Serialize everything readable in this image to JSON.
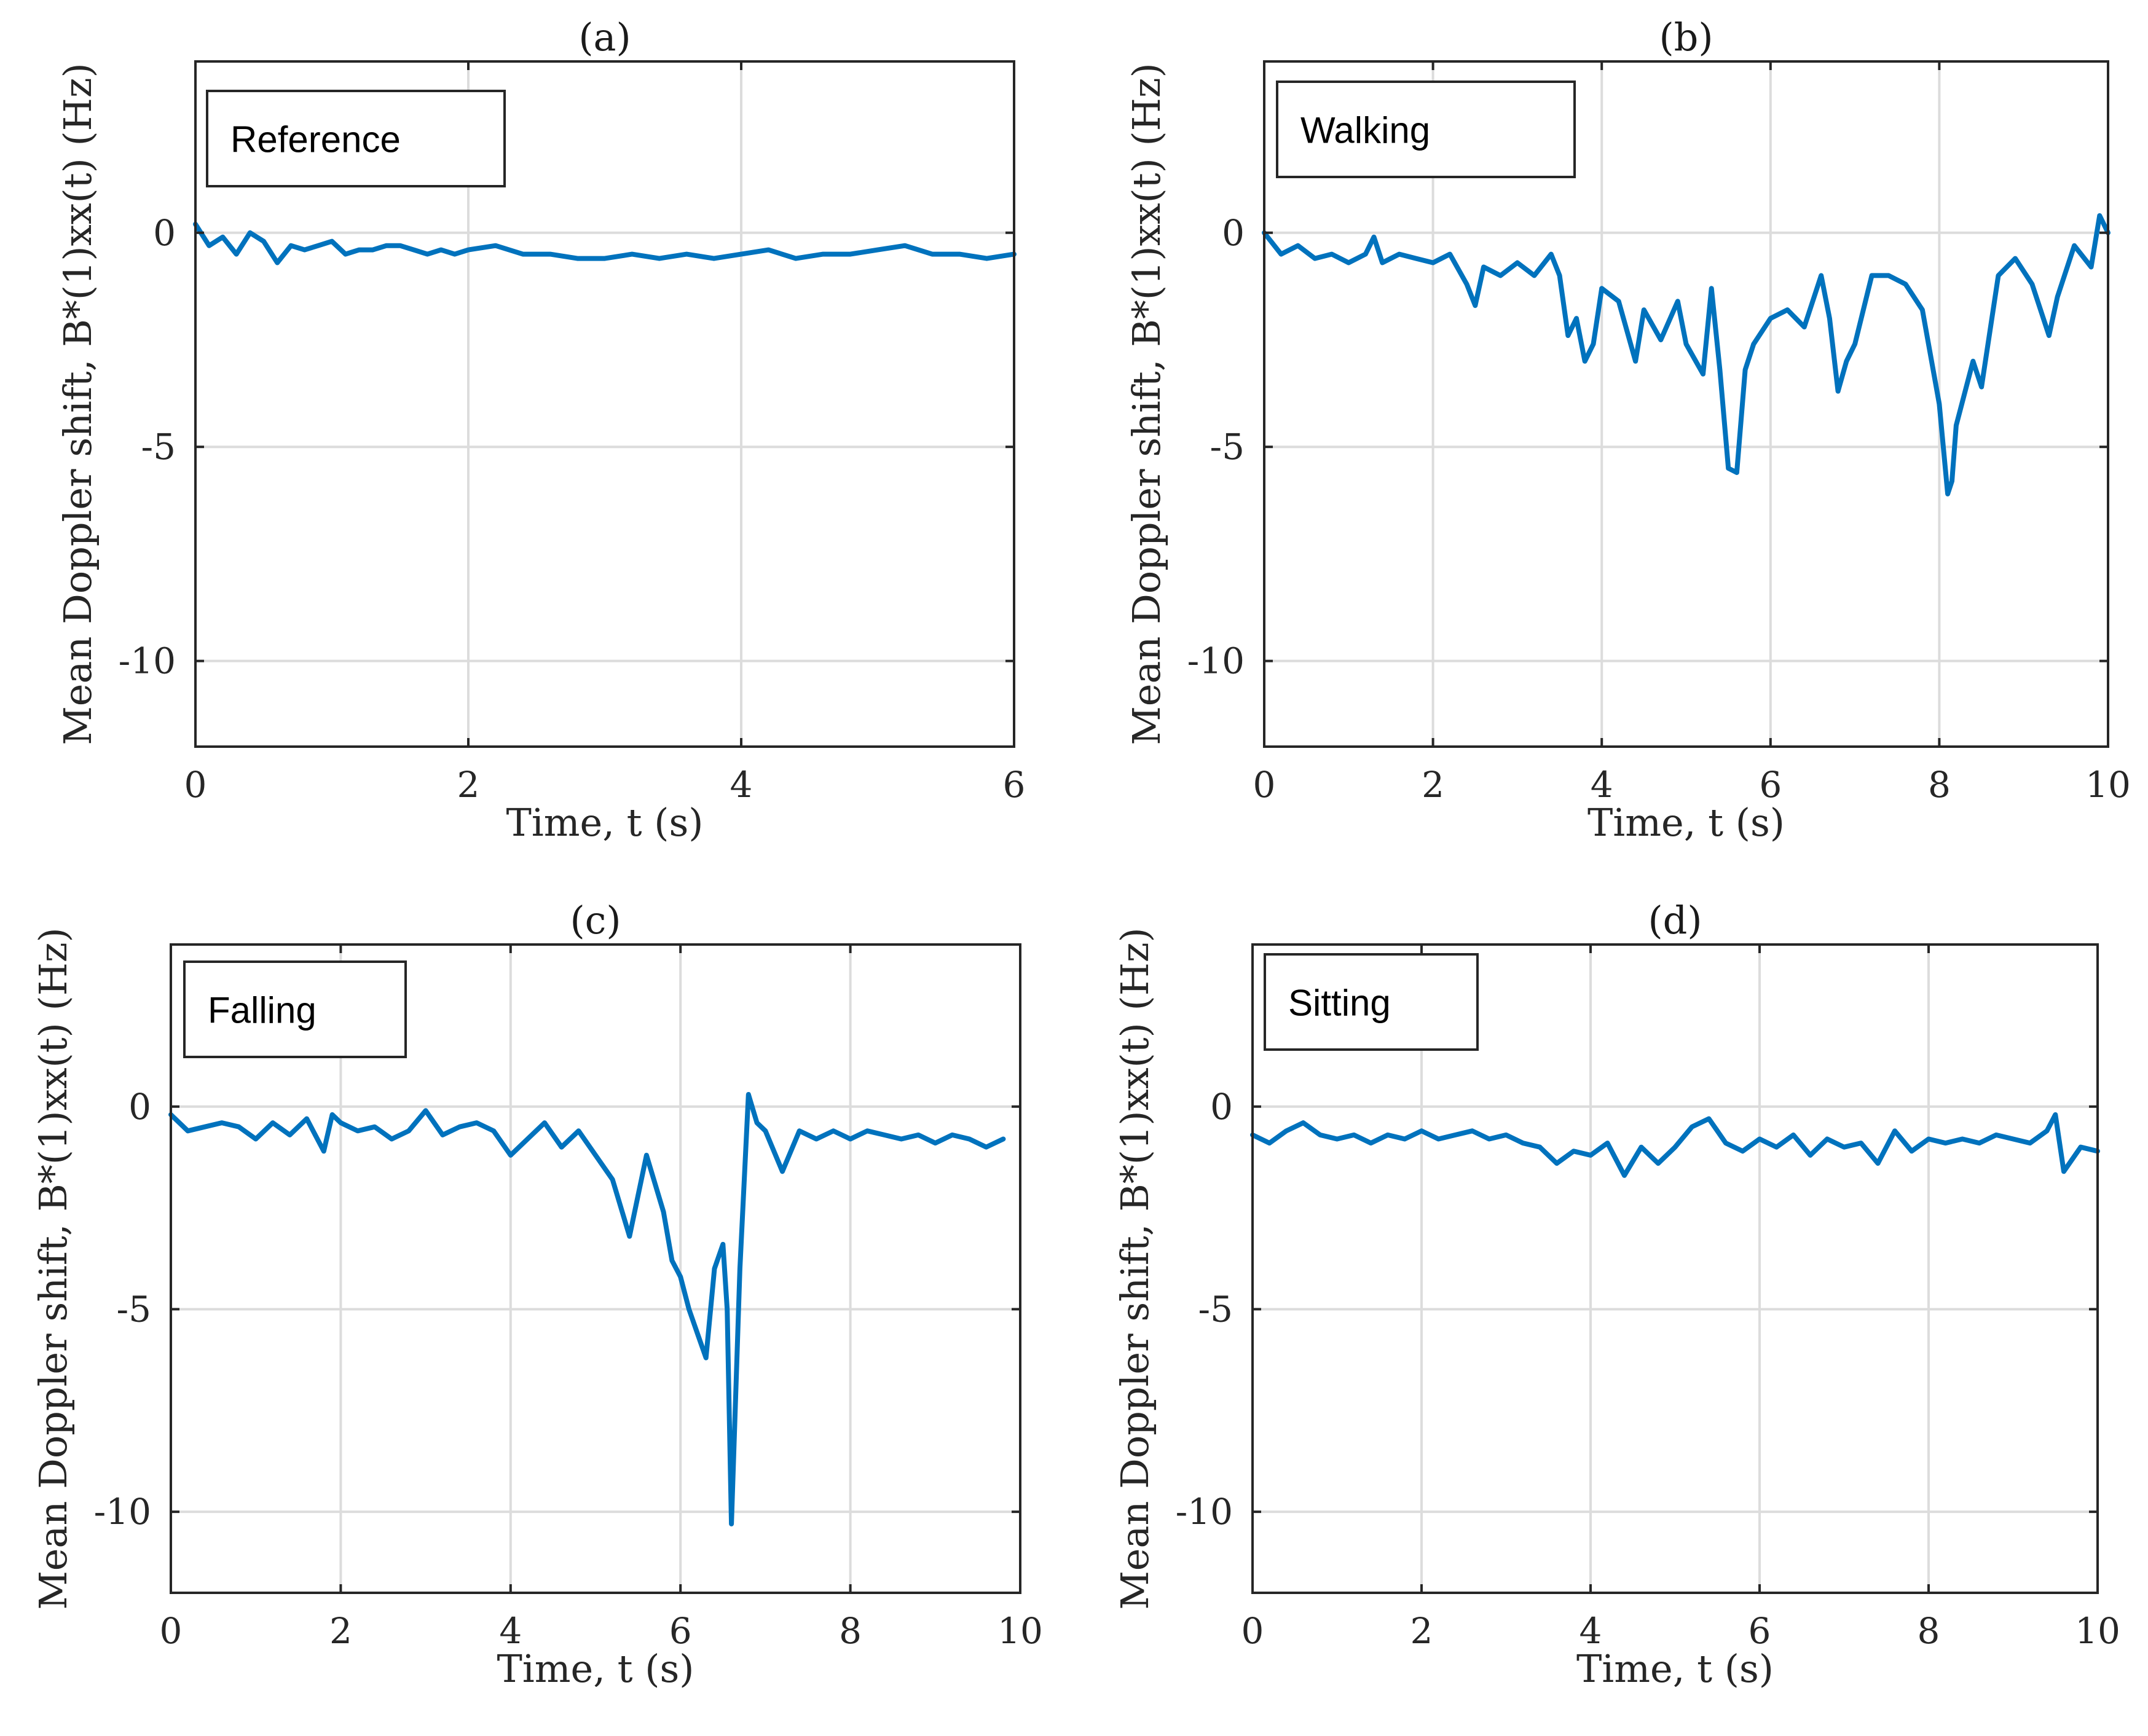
{
  "colors": {
    "line": "#0072BD",
    "axes": "#262626",
    "grid": "#dcdcdc"
  },
  "chart_data": [
    {
      "type": "line",
      "title": "(a)",
      "legend": "Reference",
      "xlabel": "Time, t (s)",
      "ylabel": "Mean Doppler shift, B*(1)xx(t) (Hz)",
      "xlim": [
        0,
        6
      ],
      "ylim": [
        -12,
        4
      ],
      "xticks": [
        0,
        2,
        4,
        6
      ],
      "yticks": [
        0,
        -5,
        -10
      ],
      "grid": true,
      "series": [
        {
          "name": "Reference",
          "x": [
            0,
            0.1,
            0.2,
            0.3,
            0.4,
            0.5,
            0.6,
            0.7,
            0.8,
            0.9,
            1.0,
            1.1,
            1.2,
            1.3,
            1.4,
            1.5,
            1.6,
            1.7,
            1.8,
            1.9,
            2.0,
            2.2,
            2.4,
            2.6,
            2.8,
            3.0,
            3.2,
            3.4,
            3.6,
            3.8,
            4.0,
            4.2,
            4.4,
            4.6,
            4.8,
            5.0,
            5.2,
            5.4,
            5.6,
            5.8,
            6.0
          ],
          "values": [
            0.2,
            -0.3,
            -0.1,
            -0.5,
            0.0,
            -0.2,
            -0.7,
            -0.3,
            -0.4,
            -0.3,
            -0.2,
            -0.5,
            -0.4,
            -0.4,
            -0.3,
            -0.3,
            -0.4,
            -0.5,
            -0.4,
            -0.5,
            -0.4,
            -0.3,
            -0.5,
            -0.5,
            -0.6,
            -0.6,
            -0.5,
            -0.6,
            -0.5,
            -0.6,
            -0.5,
            -0.4,
            -0.6,
            -0.5,
            -0.5,
            -0.4,
            -0.3,
            -0.5,
            -0.5,
            -0.6,
            -0.5
          ]
        }
      ]
    },
    {
      "type": "line",
      "title": "(b)",
      "legend": "Walking",
      "xlabel": "Time, t (s)",
      "ylabel": "Mean Doppler shift, B*(1)xx(t) (Hz)",
      "xlim": [
        0,
        10
      ],
      "ylim": [
        -12,
        4
      ],
      "xticks": [
        0,
        2,
        4,
        6,
        8,
        10
      ],
      "yticks": [
        0,
        -5,
        -10
      ],
      "grid": true,
      "series": [
        {
          "name": "Walking",
          "x": [
            0,
            0.2,
            0.4,
            0.6,
            0.8,
            1.0,
            1.2,
            1.3,
            1.4,
            1.6,
            1.8,
            2.0,
            2.2,
            2.4,
            2.5,
            2.6,
            2.8,
            3.0,
            3.2,
            3.4,
            3.5,
            3.6,
            3.7,
            3.8,
            3.9,
            4.0,
            4.2,
            4.4,
            4.5,
            4.7,
            4.9,
            5.0,
            5.2,
            5.3,
            5.4,
            5.5,
            5.6,
            5.7,
            5.8,
            6.0,
            6.2,
            6.4,
            6.6,
            6.7,
            6.8,
            6.9,
            7.0,
            7.2,
            7.4,
            7.6,
            7.8,
            8.0,
            8.1,
            8.15,
            8.2,
            8.4,
            8.5,
            8.7,
            8.9,
            9.1,
            9.3,
            9.4,
            9.6,
            9.8,
            9.9,
            10.0
          ],
          "values": [
            0.0,
            -0.5,
            -0.3,
            -0.6,
            -0.5,
            -0.7,
            -0.5,
            -0.1,
            -0.7,
            -0.5,
            -0.6,
            -0.7,
            -0.5,
            -1.2,
            -1.7,
            -0.8,
            -1.0,
            -0.7,
            -1.0,
            -0.5,
            -1.0,
            -2.4,
            -2.0,
            -3.0,
            -2.6,
            -1.3,
            -1.6,
            -3.0,
            -1.8,
            -2.5,
            -1.6,
            -2.6,
            -3.3,
            -1.3,
            -3.2,
            -5.5,
            -5.6,
            -3.2,
            -2.6,
            -2.0,
            -1.8,
            -2.2,
            -1.0,
            -2.0,
            -3.7,
            -3.0,
            -2.6,
            -1.0,
            -1.0,
            -1.2,
            -1.8,
            -4.0,
            -6.1,
            -5.8,
            -4.5,
            -3.0,
            -3.6,
            -1.0,
            -0.6,
            -1.2,
            -2.4,
            -1.5,
            -0.3,
            -0.8,
            0.4,
            0.0
          ]
        }
      ]
    },
    {
      "type": "line",
      "title": "(c)",
      "legend": "Falling",
      "xlabel": "Time, t (s)",
      "ylabel": "Mean Doppler shift, B*(1)xx(t) (Hz)",
      "xlim": [
        0,
        10
      ],
      "ylim": [
        -12,
        4
      ],
      "xticks": [
        0,
        2,
        4,
        6,
        8,
        10
      ],
      "yticks": [
        0,
        -5,
        -10
      ],
      "grid": true,
      "series": [
        {
          "name": "Falling",
          "x": [
            0,
            0.2,
            0.4,
            0.6,
            0.8,
            1.0,
            1.2,
            1.4,
            1.6,
            1.8,
            1.9,
            2.0,
            2.2,
            2.4,
            2.6,
            2.8,
            3.0,
            3.2,
            3.4,
            3.6,
            3.8,
            4.0,
            4.2,
            4.4,
            4.6,
            4.8,
            5.0,
            5.2,
            5.4,
            5.5,
            5.6,
            5.8,
            5.9,
            6.0,
            6.1,
            6.2,
            6.3,
            6.4,
            6.5,
            6.55,
            6.6,
            6.7,
            6.8,
            6.9,
            7.0,
            7.2,
            7.4,
            7.6,
            7.8,
            8.0,
            8.2,
            8.4,
            8.6,
            8.8,
            9.0,
            9.2,
            9.4,
            9.6,
            9.8
          ],
          "values": [
            -0.2,
            -0.6,
            -0.5,
            -0.4,
            -0.5,
            -0.8,
            -0.4,
            -0.7,
            -0.3,
            -1.1,
            -0.2,
            -0.4,
            -0.6,
            -0.5,
            -0.8,
            -0.6,
            -0.1,
            -0.7,
            -0.5,
            -0.4,
            -0.6,
            -1.2,
            -0.8,
            -0.4,
            -1.0,
            -0.6,
            -1.2,
            -1.8,
            -3.2,
            -2.2,
            -1.2,
            -2.6,
            -3.8,
            -4.2,
            -5.0,
            -5.6,
            -6.2,
            -4.0,
            -3.4,
            -5.0,
            -10.3,
            -4.0,
            0.3,
            -0.4,
            -0.6,
            -1.6,
            -0.6,
            -0.8,
            -0.6,
            -0.8,
            -0.6,
            -0.7,
            -0.8,
            -0.7,
            -0.9,
            -0.7,
            -0.8,
            -1.0,
            -0.8
          ]
        }
      ]
    },
    {
      "type": "line",
      "title": "(d)",
      "legend": "Sitting",
      "xlabel": "Time, t (s)",
      "ylabel": "Mean Doppler shift, B*(1)xx(t) (Hz)",
      "xlim": [
        0,
        10
      ],
      "ylim": [
        -12,
        4
      ],
      "xticks": [
        0,
        2,
        4,
        6,
        8,
        10
      ],
      "yticks": [
        0,
        -5,
        -10
      ],
      "grid": true,
      "series": [
        {
          "name": "Sitting",
          "x": [
            0,
            0.2,
            0.4,
            0.6,
            0.8,
            1.0,
            1.2,
            1.4,
            1.6,
            1.8,
            2.0,
            2.2,
            2.4,
            2.6,
            2.8,
            3.0,
            3.2,
            3.4,
            3.6,
            3.8,
            4.0,
            4.2,
            4.4,
            4.6,
            4.8,
            5.0,
            5.2,
            5.4,
            5.6,
            5.8,
            6.0,
            6.2,
            6.4,
            6.6,
            6.8,
            7.0,
            7.2,
            7.4,
            7.6,
            7.8,
            8.0,
            8.2,
            8.4,
            8.6,
            8.8,
            9.0,
            9.2,
            9.4,
            9.5,
            9.6,
            9.8,
            10.0
          ],
          "values": [
            -0.7,
            -0.9,
            -0.6,
            -0.4,
            -0.7,
            -0.8,
            -0.7,
            -0.9,
            -0.7,
            -0.8,
            -0.6,
            -0.8,
            -0.7,
            -0.6,
            -0.8,
            -0.7,
            -0.9,
            -1.0,
            -1.4,
            -1.1,
            -1.2,
            -0.9,
            -1.7,
            -1.0,
            -1.4,
            -1.0,
            -0.5,
            -0.3,
            -0.9,
            -1.1,
            -0.8,
            -1.0,
            -0.7,
            -1.2,
            -0.8,
            -1.0,
            -0.9,
            -1.4,
            -0.6,
            -1.1,
            -0.8,
            -0.9,
            -0.8,
            -0.9,
            -0.7,
            -0.8,
            -0.9,
            -0.6,
            -0.2,
            -1.6,
            -1.0,
            -1.1
          ]
        }
      ]
    }
  ]
}
